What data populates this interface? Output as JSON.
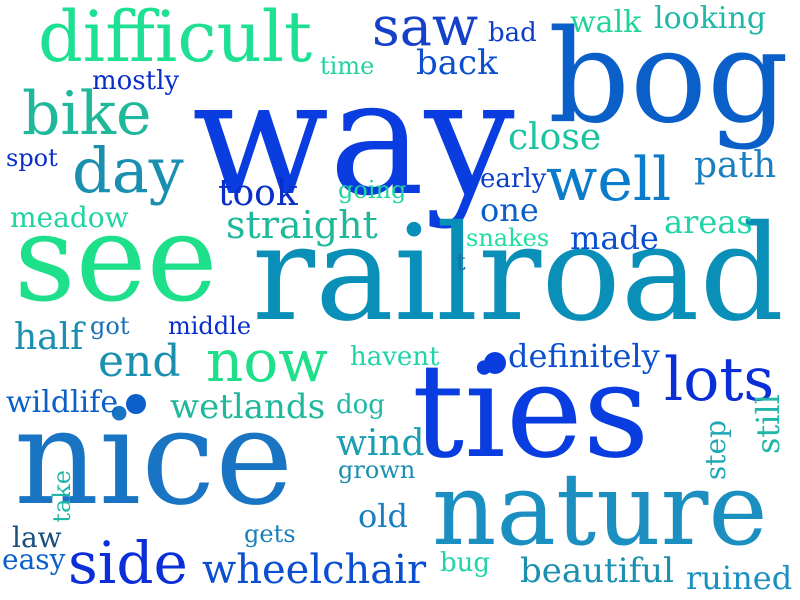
{
  "words": {
    "way": {
      "text": "way",
      "color": "#0a3de0"
    },
    "bog": {
      "text": "bog",
      "color": "#0a5fc9"
    },
    "difficult": {
      "text": "difficult",
      "color": "#1ee093"
    },
    "saw": {
      "text": "saw",
      "color": "#1540c9"
    },
    "bad": {
      "text": "bad",
      "color": "#0a3dc9"
    },
    "walk": {
      "text": "walk",
      "color": "#1fd49a"
    },
    "looking": {
      "text": "looking",
      "color": "#1fb8a8"
    },
    "time": {
      "text": "time",
      "color": "#1fd4a0"
    },
    "back": {
      "text": "back",
      "color": "#0a4fd0"
    },
    "mostly": {
      "text": "mostly",
      "color": "#0a2ec9"
    },
    "bike": {
      "text": "bike",
      "color": "#1fb89a"
    },
    "close": {
      "text": "close",
      "color": "#19c4a0"
    },
    "spot": {
      "text": "spot",
      "color": "#0a2ec9"
    },
    "day": {
      "text": "day",
      "color": "#1a8fb0"
    },
    "well": {
      "text": "well",
      "color": "#0a7cc9"
    },
    "path": {
      "text": "path",
      "color": "#1a7fc0"
    },
    "took": {
      "text": "took",
      "color": "#0a2ec9"
    },
    "going": {
      "text": "going",
      "color": "#1fd4a0"
    },
    "early": {
      "text": "early",
      "color": "#0a3dc9"
    },
    "meadow": {
      "text": "meadow",
      "color": "#1fd4a0"
    },
    "straight": {
      "text": "straight",
      "color": "#1fb89a"
    },
    "one": {
      "text": "one",
      "color": "#0a5fc9"
    },
    "areas": {
      "text": "areas",
      "color": "#1fd4a8"
    },
    "snakes": {
      "text": "snakes",
      "color": "#1fe09a"
    },
    "made": {
      "text": "made",
      "color": "#0a4fd0"
    },
    "see": {
      "text": "see",
      "color": "#1ee08a"
    },
    "railroad": {
      "text": "railroad",
      "color": "#0a8fb8"
    },
    "t": {
      "text": "t",
      "color": "#1a6fa0"
    },
    "half": {
      "text": "half",
      "color": "#1a8fb0"
    },
    "got": {
      "text": "got",
      "color": "#1a6fb8"
    },
    "middle": {
      "text": "middle",
      "color": "#0a2ec9"
    },
    "now": {
      "text": "now",
      "color": "#1ee08a"
    },
    "havent": {
      "text": "havent",
      "color": "#1fd4a8"
    },
    "end": {
      "text": "end",
      "color": "#1a8fb0"
    },
    "definitely": {
      "text": "definitely",
      "color": "#0a4fd0"
    },
    "lots": {
      "text": "lots",
      "color": "#0a2ed8"
    },
    "wildlife": {
      "text": "wildlife",
      "color": "#0a5fc9"
    },
    "wetlands": {
      "text": "wetlands",
      "color": "#1fb89a"
    },
    "dog": {
      "text": "dog",
      "color": "#1fb8a8"
    },
    "ties": {
      "text": "ties",
      "color": "#0a3de0"
    },
    "still": {
      "text": "still",
      "color": "#1fb8a8"
    },
    "step": {
      "text": "step",
      "color": "#1fa8b8"
    },
    "nice": {
      "text": "nice",
      "color": "#1a74c4"
    },
    "wind": {
      "text": "wind",
      "color": "#1a9fb0"
    },
    "grown": {
      "text": "grown",
      "color": "#1a8fb0"
    },
    "take": {
      "text": "take",
      "color": "#1fb8a8"
    },
    "nature": {
      "text": "nature",
      "color": "#1a8fc0"
    },
    "old": {
      "text": "old",
      "color": "#1a7fc0"
    },
    "gets": {
      "text": "gets",
      "color": "#1a7fb8"
    },
    "law": {
      "text": "law",
      "color": "#1a4f80"
    },
    "easy": {
      "text": "easy",
      "color": "#0a5fc9"
    },
    "side": {
      "text": "side",
      "color": "#0a2ed8"
    },
    "wheelchair": {
      "text": "wheelchair",
      "color": "#0a4fd0"
    },
    "bug": {
      "text": "bug",
      "color": "#1fd4a8"
    },
    "beautiful": {
      "text": "beautiful",
      "color": "#1a8fb0"
    },
    "ruined": {
      "text": "ruined",
      "color": "#1a8fc0"
    }
  },
  "dots": {
    "dot_a": {
      "color": "#0a5fc9"
    },
    "dot_b": {
      "color": "#0a3de0"
    }
  }
}
